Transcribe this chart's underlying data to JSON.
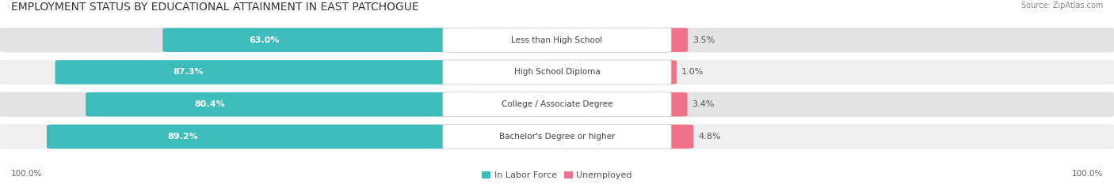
{
  "title": "EMPLOYMENT STATUS BY EDUCATIONAL ATTAINMENT IN EAST PATCHOGUE",
  "source": "Source: ZipAtlas.com",
  "categories": [
    "Less than High School",
    "High School Diploma",
    "College / Associate Degree",
    "Bachelor's Degree or higher"
  ],
  "in_labor_force": [
    63.0,
    87.3,
    80.4,
    89.2
  ],
  "unemployed": [
    3.5,
    1.0,
    3.4,
    4.8
  ],
  "teal_color": "#3dbcbc",
  "pink_color": "#f0728a",
  "bg_color": "#ffffff",
  "row_bg_light": "#efefef",
  "row_bg_dark": "#e3e3e3",
  "label_bg_color": "#ffffff",
  "axis_label_left": "100.0%",
  "axis_label_right": "100.0%",
  "legend_labor": "In Labor Force",
  "legend_unemployed": "Unemployed",
  "title_fontsize": 10,
  "source_fontsize": 7,
  "bar_label_fontsize": 8,
  "category_fontsize": 7.5,
  "axis_fontsize": 7.5,
  "legend_fontsize": 8
}
